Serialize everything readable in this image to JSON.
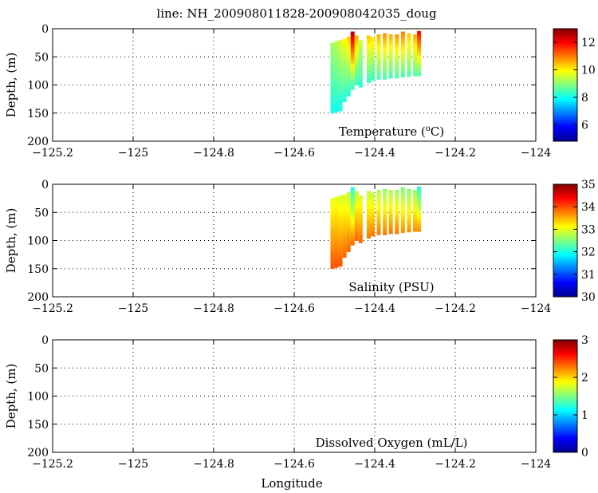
{
  "title": "line: NH_200908011828-200908042035_doug",
  "xlabel": "Longitude",
  "ylabel": "Depth, (m)",
  "chart_data": [
    {
      "type": "scatter",
      "variable_label": "Temperature (°C)",
      "variable_base": "Temperature (",
      "variable_sup": "o",
      "variable_unit": "C)",
      "xlabel": "",
      "ylabel": "Depth, (m)",
      "xlim": [
        -125.2,
        -124
      ],
      "ylim": [
        200,
        0
      ],
      "x_ticks": [
        "-125.2",
        "-125",
        "-124.8",
        "-124.6",
        "-124.4",
        "-124.2",
        "-124"
      ],
      "y_ticks": [
        "0",
        "50",
        "100",
        "150",
        "200"
      ],
      "grid": true,
      "colormap": "jet",
      "colorbar_range": [
        4.8,
        13
      ],
      "colorbar_ticks": [
        "6",
        "8",
        "10",
        "12"
      ],
      "profiles": [
        {
          "lon": -124.505,
          "top": 25,
          "bottom": 150,
          "v_top": 9.2,
          "v_bottom": 8.0
        },
        {
          "lon": -124.495,
          "top": 22,
          "bottom": 148,
          "v_top": 9.4,
          "v_bottom": 8.0
        },
        {
          "lon": -124.485,
          "top": 20,
          "bottom": 146,
          "v_top": 9.6,
          "v_bottom": 8.0
        },
        {
          "lon": -124.475,
          "top": 18,
          "bottom": 130,
          "v_top": 10.0,
          "v_bottom": 8.1
        },
        {
          "lon": -124.465,
          "top": 14,
          "bottom": 120,
          "v_top": 10.3,
          "v_bottom": 8.1
        },
        {
          "lon": -124.455,
          "top": 5,
          "bottom": 108,
          "v_top": 12.6,
          "v_bottom": 8.2
        },
        {
          "lon": -124.445,
          "top": 12,
          "bottom": 100,
          "v_top": 10.6,
          "v_bottom": 8.2
        },
        {
          "lon": -124.435,
          "top": 20,
          "bottom": 104,
          "v_top": 9.6,
          "v_bottom": 8.2
        },
        {
          "lon": -124.415,
          "top": 12,
          "bottom": 96,
          "v_top": 10.4,
          "v_bottom": 8.3
        },
        {
          "lon": -124.405,
          "top": 15,
          "bottom": 92,
          "v_top": 10.2,
          "v_bottom": 8.3
        },
        {
          "lon": -124.39,
          "top": 10,
          "bottom": 90,
          "v_top": 10.6,
          "v_bottom": 8.4
        },
        {
          "lon": -124.375,
          "top": 8,
          "bottom": 90,
          "v_top": 10.8,
          "v_bottom": 8.4
        },
        {
          "lon": -124.36,
          "top": 10,
          "bottom": 88,
          "v_top": 10.6,
          "v_bottom": 8.4
        },
        {
          "lon": -124.345,
          "top": 10,
          "bottom": 88,
          "v_top": 10.8,
          "v_bottom": 8.4
        },
        {
          "lon": -124.33,
          "top": 5,
          "bottom": 86,
          "v_top": 11.0,
          "v_bottom": 8.4
        },
        {
          "lon": -124.315,
          "top": 8,
          "bottom": 85,
          "v_top": 10.4,
          "v_bottom": 8.5
        },
        {
          "lon": -124.3,
          "top": 10,
          "bottom": 84,
          "v_top": 10.6,
          "v_bottom": 8.5
        },
        {
          "lon": -124.29,
          "top": 4,
          "bottom": 84,
          "v_top": 12.0,
          "v_bottom": 8.5
        }
      ]
    },
    {
      "type": "scatter",
      "variable_label": "Salinity (PSU)",
      "xlabel": "",
      "ylabel": "Depth, (m)",
      "xlim": [
        -125.2,
        -124
      ],
      "ylim": [
        200,
        0
      ],
      "x_ticks": [
        "-125.2",
        "-125",
        "-124.8",
        "-124.6",
        "-124.4",
        "-124.2",
        "-124"
      ],
      "y_ticks": [
        "0",
        "50",
        "100",
        "150",
        "200"
      ],
      "grid": true,
      "colormap": "jet",
      "colorbar_range": [
        30,
        35
      ],
      "colorbar_ticks": [
        "30",
        "31",
        "32",
        "33",
        "34",
        "35"
      ],
      "profiles": [
        {
          "lon": -124.505,
          "top": 25,
          "bottom": 150,
          "v_top": 33.0,
          "v_bottom": 34.0
        },
        {
          "lon": -124.495,
          "top": 22,
          "bottom": 148,
          "v_top": 33.0,
          "v_bottom": 34.0
        },
        {
          "lon": -124.485,
          "top": 20,
          "bottom": 146,
          "v_top": 32.9,
          "v_bottom": 34.0
        },
        {
          "lon": -124.475,
          "top": 18,
          "bottom": 130,
          "v_top": 32.9,
          "v_bottom": 33.9
        },
        {
          "lon": -124.465,
          "top": 14,
          "bottom": 120,
          "v_top": 32.8,
          "v_bottom": 33.9
        },
        {
          "lon": -124.455,
          "top": 5,
          "bottom": 108,
          "v_top": 32.0,
          "v_bottom": 33.9
        },
        {
          "lon": -124.445,
          "top": 12,
          "bottom": 100,
          "v_top": 32.8,
          "v_bottom": 33.9
        },
        {
          "lon": -124.435,
          "top": 20,
          "bottom": 104,
          "v_top": 32.9,
          "v_bottom": 33.9
        },
        {
          "lon": -124.415,
          "top": 12,
          "bottom": 96,
          "v_top": 32.8,
          "v_bottom": 33.8
        },
        {
          "lon": -124.405,
          "top": 15,
          "bottom": 92,
          "v_top": 32.8,
          "v_bottom": 33.8
        },
        {
          "lon": -124.39,
          "top": 10,
          "bottom": 90,
          "v_top": 32.7,
          "v_bottom": 33.8
        },
        {
          "lon": -124.375,
          "top": 8,
          "bottom": 90,
          "v_top": 32.6,
          "v_bottom": 33.8
        },
        {
          "lon": -124.36,
          "top": 10,
          "bottom": 88,
          "v_top": 32.7,
          "v_bottom": 33.8
        },
        {
          "lon": -124.345,
          "top": 10,
          "bottom": 88,
          "v_top": 32.6,
          "v_bottom": 33.8
        },
        {
          "lon": -124.33,
          "top": 5,
          "bottom": 86,
          "v_top": 32.5,
          "v_bottom": 33.7
        },
        {
          "lon": -124.315,
          "top": 8,
          "bottom": 85,
          "v_top": 32.5,
          "v_bottom": 33.7
        },
        {
          "lon": -124.3,
          "top": 10,
          "bottom": 84,
          "v_top": 32.6,
          "v_bottom": 33.7
        },
        {
          "lon": -124.29,
          "top": 4,
          "bottom": 84,
          "v_top": 32.0,
          "v_bottom": 33.7
        }
      ]
    },
    {
      "type": "scatter",
      "variable_label": "Dissolved Oxygen (mL/L)",
      "xlabel": "Longitude",
      "ylabel": "Depth, (m)",
      "xlim": [
        -125.2,
        -124
      ],
      "ylim": [
        200,
        0
      ],
      "x_ticks": [
        "-125.2",
        "-125",
        "-124.8",
        "-124.6",
        "-124.4",
        "-124.2",
        "-124"
      ],
      "y_ticks": [
        "0",
        "50",
        "100",
        "150",
        "200"
      ],
      "grid": true,
      "colormap": "jet",
      "colorbar_range": [
        0,
        3
      ],
      "colorbar_ticks": [
        "0",
        "1",
        "2",
        "3"
      ],
      "profiles": []
    }
  ]
}
